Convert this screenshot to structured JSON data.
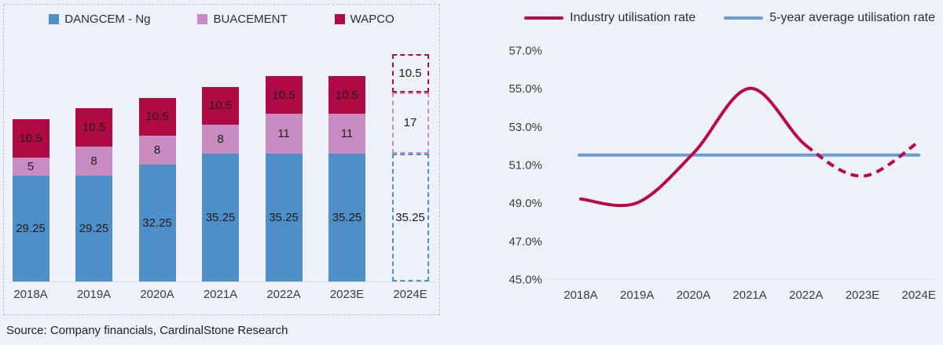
{
  "page": {
    "source_note": "Source: Company financials, CardinalStone Research"
  },
  "colors": {
    "dangcem_blue": "#4e8fc7",
    "buacement_pink": "#c98cc2",
    "wapco_crimson": "#b00a45",
    "industry_line_red": "#bc0845",
    "average_line_blue": "#6d9bd3",
    "panel_border": "#b6c3da",
    "axis_line": "#d9dde4"
  },
  "chart_data": [
    {
      "type": "bar",
      "stacked": true,
      "title": "",
      "categories": [
        "2018A",
        "2019A",
        "2020A",
        "2021A",
        "2022A",
        "2023E",
        "2024E"
      ],
      "forecast_categories": [
        "2024E"
      ],
      "series": [
        {
          "name": "DANGCEM - Ng",
          "color": "#4e8fc7",
          "values": [
            29.25,
            29.25,
            32.25,
            35.25,
            35.25,
            35.25,
            35.25
          ]
        },
        {
          "name": "BUACEMENT",
          "color": "#c98cc2",
          "values": [
            5,
            8,
            8,
            8,
            11,
            11,
            17
          ]
        },
        {
          "name": "WAPCO",
          "color": "#b00a45",
          "values": [
            10.5,
            10.5,
            10.5,
            10.5,
            10.5,
            10.5,
            10.5
          ]
        }
      ],
      "data_labels": true,
      "legend_position": "top",
      "grid": false
    },
    {
      "type": "line",
      "title": "",
      "categories": [
        "2018A",
        "2019A",
        "2020A",
        "2021A",
        "2022A",
        "2023E",
        "2024E"
      ],
      "series": [
        {
          "name": "Industry utilisation rate",
          "color": "#bc0845",
          "values": [
            49.2,
            49.0,
            51.6,
            55.0,
            52.0,
            50.4,
            52.2
          ],
          "style": "smooth",
          "solid_points": 5,
          "dashed_after": "2022A"
        },
        {
          "name": "5-year average utilisation rate",
          "color": "#6d9bd3",
          "values": [
            51.5,
            51.5,
            51.5,
            51.5,
            51.5,
            51.5,
            51.5
          ],
          "style": "straight"
        }
      ],
      "ylim": [
        45.0,
        57.0
      ],
      "ytick_step": 2.0,
      "ytick_labels": [
        "45.0%",
        "47.0%",
        "49.0%",
        "51.0%",
        "53.0%",
        "55.0%",
        "57.0%"
      ],
      "legend_position": "top",
      "grid": false
    }
  ]
}
